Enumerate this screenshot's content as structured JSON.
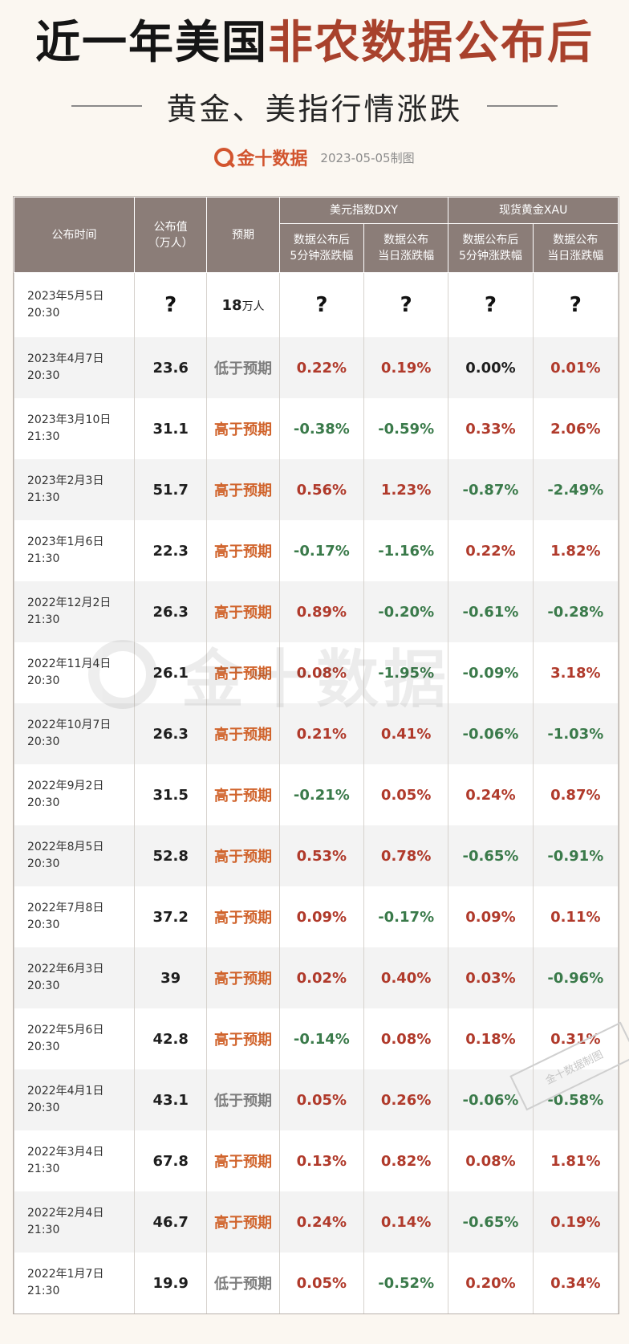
{
  "header": {
    "title_black": "近一年美国",
    "title_red": "非农数据公布后",
    "subtitle": "黄金、美指行情涨跌",
    "brand": "金十数据",
    "made_date": "2023-05-05制图"
  },
  "watermark": {
    "text": "金十数据",
    "stamp": "金十数据制图"
  },
  "table": {
    "col_time": "公布时间",
    "col_actual_line1": "公布值",
    "col_actual_line2": "（万人）",
    "col_expected": "预期",
    "group_dxy": "美元指数DXY",
    "group_xau": "现货黄金XAU",
    "sub_5min_line1": "数据公布后",
    "sub_5min_line2": "5分钟涨跌幅",
    "sub_day_line1": "数据公布",
    "sub_day_line2": "当日涨跌幅",
    "rows": [
      {
        "date": "2023年5月5日\n20:30",
        "actual": "?",
        "expected": "18",
        "unit": "万人",
        "dxy5": "?",
        "dxyd": "?",
        "xau5": "?",
        "xaud": "?"
      },
      {
        "date": "2023年4月7日\n20:30",
        "actual": "23.6",
        "expected": "低于预期",
        "dxy5": "0.22%",
        "dxyd": "0.19%",
        "xau5": "0.00%",
        "xaud": "0.01%"
      },
      {
        "date": "2023年3月10日\n21:30",
        "actual": "31.1",
        "expected": "高于预期",
        "dxy5": "-0.38%",
        "dxyd": "-0.59%",
        "xau5": "0.33%",
        "xaud": "2.06%"
      },
      {
        "date": "2023年2月3日\n21:30",
        "actual": "51.7",
        "expected": "高于预期",
        "dxy5": "0.56%",
        "dxyd": "1.23%",
        "xau5": "-0.87%",
        "xaud": "-2.49%"
      },
      {
        "date": "2023年1月6日\n21:30",
        "actual": "22.3",
        "expected": "高于预期",
        "dxy5": "-0.17%",
        "dxyd": "-1.16%",
        "xau5": "0.22%",
        "xaud": "1.82%"
      },
      {
        "date": "2022年12月2日\n21:30",
        "actual": "26.3",
        "expected": "高于预期",
        "dxy5": "0.89%",
        "dxyd": "-0.20%",
        "xau5": "-0.61%",
        "xaud": "-0.28%"
      },
      {
        "date": "2022年11月4日\n20:30",
        "actual": "26.1",
        "expected": "高于预期",
        "dxy5": "0.08%",
        "dxyd": "-1.95%",
        "xau5": "-0.09%",
        "xaud": "3.18%"
      },
      {
        "date": "2022年10月7日\n20:30",
        "actual": "26.3",
        "expected": "高于预期",
        "dxy5": "0.21%",
        "dxyd": "0.41%",
        "xau5": "-0.06%",
        "xaud": "-1.03%"
      },
      {
        "date": "2022年9月2日\n20:30",
        "actual": "31.5",
        "expected": "高于预期",
        "dxy5": "-0.21%",
        "dxyd": "0.05%",
        "xau5": "0.24%",
        "xaud": "0.87%"
      },
      {
        "date": "2022年8月5日\n20:30",
        "actual": "52.8",
        "expected": "高于预期",
        "dxy5": "0.53%",
        "dxyd": "0.78%",
        "xau5": "-0.65%",
        "xaud": "-0.91%"
      },
      {
        "date": "2022年7月8日\n20:30",
        "actual": "37.2",
        "expected": "高于预期",
        "dxy5": "0.09%",
        "dxyd": "-0.17%",
        "xau5": "0.09%",
        "xaud": "0.11%"
      },
      {
        "date": "2022年6月3日\n20:30",
        "actual": "39",
        "expected": "高于预期",
        "dxy5": "0.02%",
        "dxyd": "0.40%",
        "xau5": "0.03%",
        "xaud": "-0.96%"
      },
      {
        "date": "2022年5月6日\n20:30",
        "actual": "42.8",
        "expected": "高于预期",
        "dxy5": "-0.14%",
        "dxyd": "0.08%",
        "xau5": "0.18%",
        "xaud": "0.31%"
      },
      {
        "date": "2022年4月1日\n20:30",
        "actual": "43.1",
        "expected": "低于预期",
        "dxy5": "0.05%",
        "dxyd": "0.26%",
        "xau5": "-0.06%",
        "xaud": "-0.58%"
      },
      {
        "date": "2022年3月4日\n21:30",
        "actual": "67.8",
        "expected": "高于预期",
        "dxy5": "0.13%",
        "dxyd": "0.82%",
        "xau5": "0.08%",
        "xaud": "1.81%"
      },
      {
        "date": "2022年2月4日\n21:30",
        "actual": "46.7",
        "expected": "高于预期",
        "dxy5": "0.24%",
        "dxyd": "0.14%",
        "xau5": "-0.65%",
        "xaud": "0.19%"
      },
      {
        "date": "2022年1月7日\n21:30",
        "actual": "19.9",
        "expected": "低于预期",
        "dxy5": "0.05%",
        "dxyd": "-0.52%",
        "xau5": "0.20%",
        "xaud": "0.34%"
      }
    ]
  },
  "colors": {
    "title_accent": "#a8412c",
    "brand": "#d2552f",
    "header_bg": "#8b7d78",
    "positive": "#b03a2b",
    "negative": "#3a7a4a",
    "above_expectation": "#d0632b",
    "below_expectation": "#7d7d7d"
  },
  "icons": {
    "brand_logo": "jin10-logo-icon"
  }
}
